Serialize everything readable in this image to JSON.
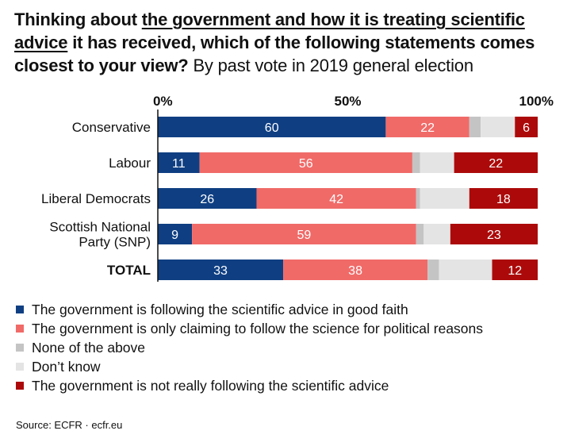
{
  "header": {
    "title_prefix": "Thinking about ",
    "title_underlined": "the government and how it is treating scientific advice",
    "title_suffix": " it has received, which of the following statements comes closest to your view?",
    "subtitle": "By past vote in 2019 general election"
  },
  "chart_data": {
    "type": "bar",
    "orientation": "horizontal",
    "stacked": true,
    "xlim": [
      0,
      100
    ],
    "tick_labels": [
      "0%",
      "50%",
      "100%"
    ],
    "tick_values": [
      0,
      50,
      100
    ],
    "categories": [
      "Conservative",
      "Labour",
      "Liberal Democrats",
      "Scottish National Party (SNP)",
      "TOTAL"
    ],
    "category_lines": [
      [
        "Conservative"
      ],
      [
        "Labour"
      ],
      [
        "Liberal Democrats"
      ],
      [
        "Scottish National",
        "Party (SNP)"
      ],
      [
        "TOTAL"
      ]
    ],
    "category_bold": [
      false,
      false,
      false,
      false,
      true
    ],
    "series": [
      {
        "name": "The government is following the scientific advice in good faith",
        "color": "#0f3f82",
        "label_color": "#ffffff",
        "values": [
          60,
          11,
          26,
          9,
          33
        ]
      },
      {
        "name": "The government is only claiming to follow the science for political reasons",
        "color": "#f06a68",
        "label_color": "#ffffff",
        "values": [
          22,
          56,
          42,
          59,
          38
        ]
      },
      {
        "name": "None of the above",
        "color": "#c4c4c4",
        "label_color": null,
        "values": [
          3,
          2,
          1,
          2,
          3
        ]
      },
      {
        "name": "Don’t know",
        "color": "#e4e4e4",
        "label_color": null,
        "values": [
          9,
          9,
          13,
          7,
          14
        ]
      },
      {
        "name": "The government is not really following the scientific advice",
        "color": "#ac0a0a",
        "label_color": "#ffffff",
        "values": [
          6,
          22,
          18,
          23,
          12
        ]
      }
    ],
    "data_labels_shown_for_series": [
      0,
      1,
      4
    ],
    "legend_position": "bottom-left"
  },
  "source": "Source:  ECFR · ecfr.eu"
}
